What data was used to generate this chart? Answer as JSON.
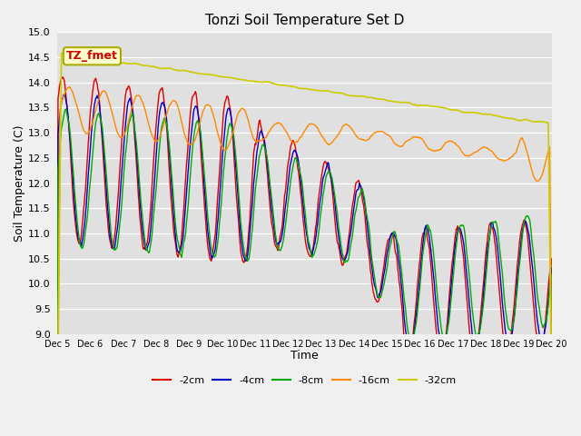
{
  "title": "Tonzi Soil Temperature Set D",
  "xlabel": "Time",
  "ylabel": "Soil Temperature (C)",
  "ylim": [
    9.0,
    15.0
  ],
  "yticks": [
    9.0,
    9.5,
    10.0,
    10.5,
    11.0,
    11.5,
    12.0,
    12.5,
    13.0,
    13.5,
    14.0,
    14.5,
    15.0
  ],
  "xtick_labels": [
    "Dec 5",
    "Dec 6",
    "Dec 7",
    "Dec 8",
    "Dec 9",
    "Dec 10",
    "Dec 11",
    "Dec 12",
    "Dec 13",
    "Dec 14",
    "Dec 15",
    "Dec 16",
    "Dec 17",
    "Dec 18",
    "Dec 19",
    "Dec 20"
  ],
  "colors": {
    "-2cm": "#dd0000",
    "-4cm": "#0000cc",
    "-8cm": "#00aa00",
    "-16cm": "#ff8800",
    "-32cm": "#cccc00"
  },
  "annotation_text": "TZ_fmet",
  "annotation_bg": "#ffffcc",
  "annotation_border": "#aaaa00",
  "fig_bg": "#f0f0f0",
  "plot_bg": "#e0e0e0",
  "grid_color": "#ffffff"
}
